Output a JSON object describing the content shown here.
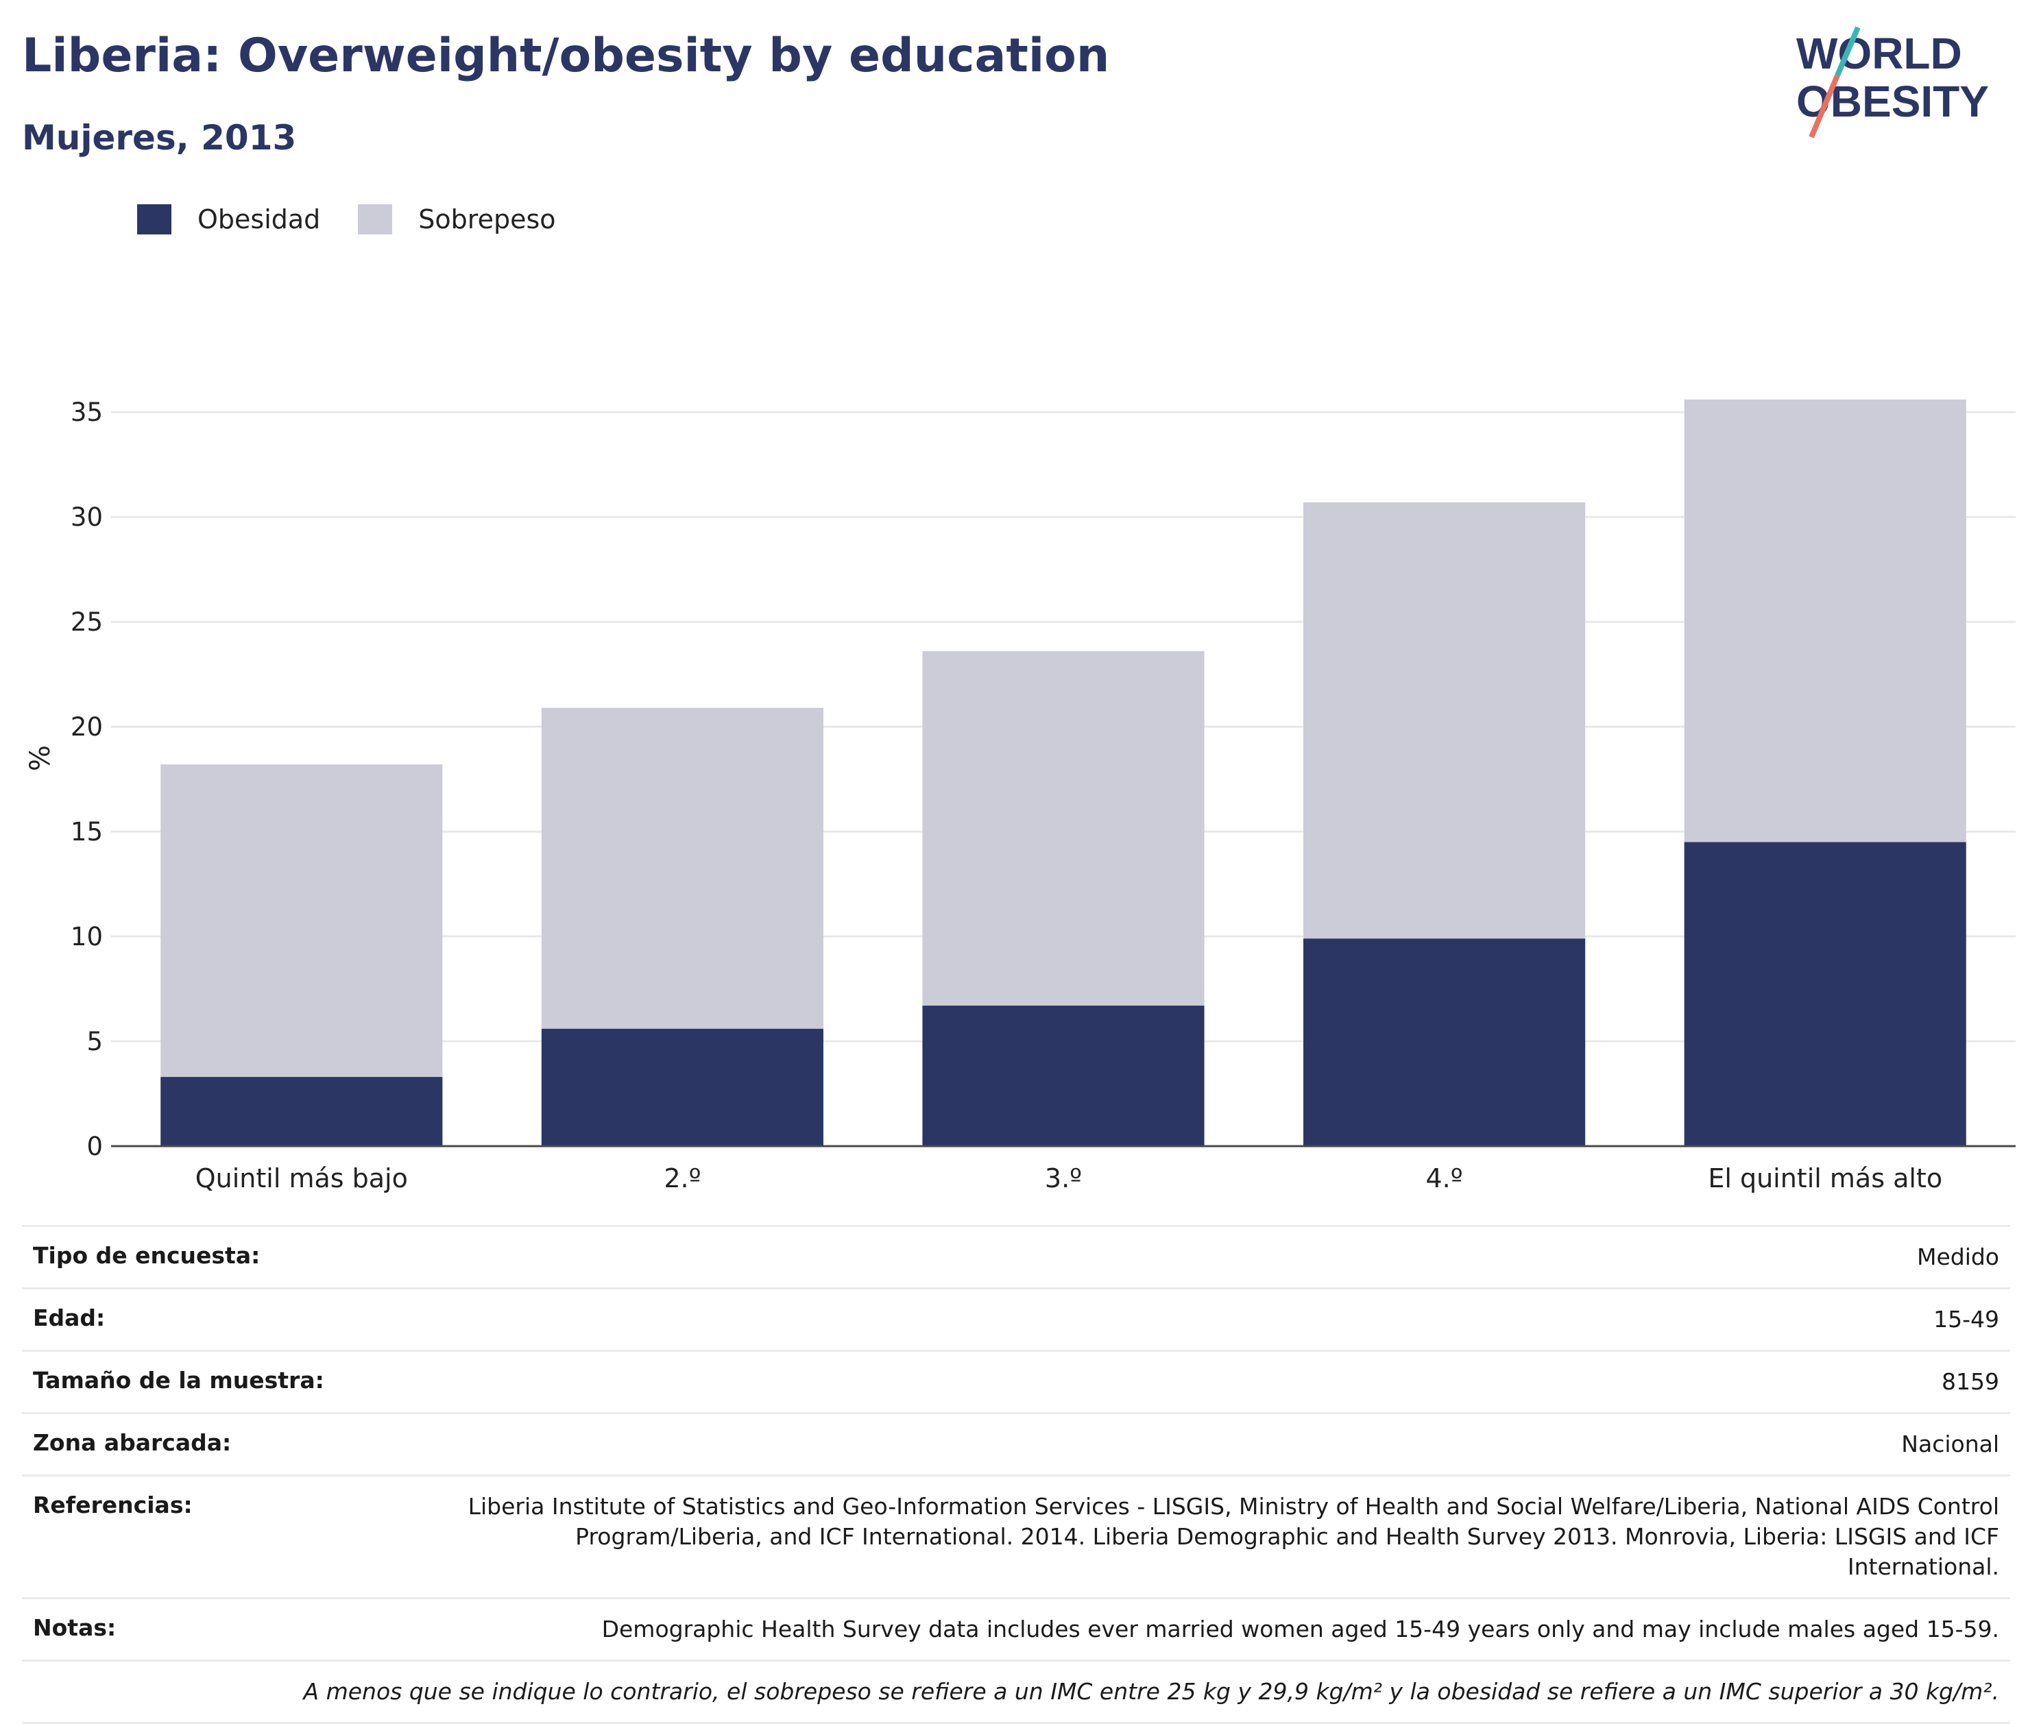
{
  "header": {
    "title": "Liberia: Overweight/obesity by education",
    "subtitle": "Mujeres, 2013"
  },
  "logo": {
    "line1": "WORLD",
    "line2": "OBESITY"
  },
  "colors": {
    "obesity": "#2b3664",
    "overweight": "#cbccd7",
    "title": "#2b3664",
    "logo_teal": "#3ab5b5",
    "logo_coral": "#e8725f"
  },
  "chart_data": {
    "type": "bar",
    "stacked": true,
    "categories": [
      "Quintil más bajo",
      "2.º",
      "3.º",
      "4.º",
      "El quintil más alto"
    ],
    "series": [
      {
        "name": "Obesidad",
        "values": [
          3.3,
          5.6,
          6.7,
          9.9,
          14.5
        ]
      },
      {
        "name": "Sobrepeso",
        "values": [
          14.9,
          15.3,
          16.9,
          20.8,
          21.1
        ]
      }
    ],
    "ylabel": "%",
    "ylim": [
      0,
      37
    ],
    "yticks": [
      0,
      5,
      10,
      15,
      20,
      25,
      30,
      35
    ],
    "grid": true,
    "legend": "top-left"
  },
  "meta": {
    "rows": [
      {
        "label": "Tipo de encuesta:",
        "value": "Medido"
      },
      {
        "label": "Edad:",
        "value": "15-49"
      },
      {
        "label": "Tamaño de la muestra:",
        "value": "8159"
      },
      {
        "label": "Zona abarcada:",
        "value": "Nacional"
      },
      {
        "label": "Referencias:",
        "value": "Liberia Institute of Statistics and Geo-Information Services - LISGIS, Ministry of Health and Social Welfare/Liberia, National AIDS Control Program/Liberia, and ICF International. 2014. Liberia Demographic and Health Survey 2013. Monrovia, Liberia: LISGIS and ICF International."
      },
      {
        "label": "Notas:",
        "value": "Demographic Health Survey data includes ever married women aged 15-49 years only and may include males aged 15-59."
      }
    ],
    "footnote": "A menos que se indique lo contrario, el sobrepeso se refiere a un IMC entre 25 kg y 29,9 kg/m² y la obesidad se refiere a un IMC superior a 30 kg/m²."
  }
}
